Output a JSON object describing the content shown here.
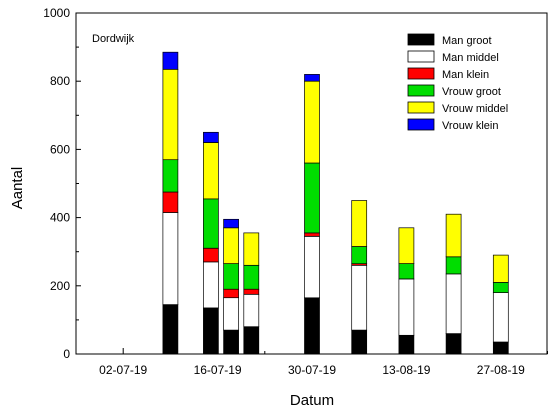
{
  "chart_data": {
    "type": "bar",
    "stacked": true,
    "annotation": "Dordwijk",
    "xlabel": "Datum",
    "ylabel": "Aantal",
    "ylim": [
      0,
      1000
    ],
    "yticks": [
      0,
      200,
      400,
      600,
      800,
      1000
    ],
    "xlim": [
      "2019-06-25",
      "2019-09-03"
    ],
    "xticks": [
      "2019-07-02",
      "2019-07-16",
      "2019-07-30",
      "2019-08-13",
      "2019-08-27"
    ],
    "xtick_labels": [
      "02-07-19",
      "16-07-19",
      "30-07-19",
      "13-08-19",
      "27-08-19"
    ],
    "legend_position": "top-right",
    "dates": [
      "2019-07-09",
      "2019-07-15",
      "2019-07-18",
      "2019-07-21",
      "2019-07-30",
      "2019-08-06",
      "2019-08-13",
      "2019-08-20",
      "2019-08-27"
    ],
    "series": [
      {
        "name": "Man groot",
        "color": "#000000",
        "values": [
          145,
          135,
          70,
          80,
          165,
          70,
          55,
          60,
          35
        ]
      },
      {
        "name": "Man middel",
        "color": "#ffffff",
        "values": [
          270,
          135,
          95,
          95,
          180,
          190,
          165,
          175,
          145
        ]
      },
      {
        "name": "Man klein",
        "color": "#ff0000",
        "values": [
          60,
          40,
          25,
          15,
          10,
          5,
          0,
          0,
          0
        ]
      },
      {
        "name": "Vrouw groot",
        "color": "#00dd00",
        "values": [
          95,
          145,
          75,
          70,
          205,
          50,
          45,
          50,
          30
        ]
      },
      {
        "name": "Vrouw middel",
        "color": "#ffff00",
        "values": [
          265,
          165,
          105,
          95,
          240,
          135,
          105,
          125,
          80
        ]
      },
      {
        "name": "Vrouw klein",
        "color": "#0000ff",
        "values": [
          50,
          30,
          25,
          0,
          20,
          0,
          0,
          0,
          0
        ]
      }
    ]
  }
}
